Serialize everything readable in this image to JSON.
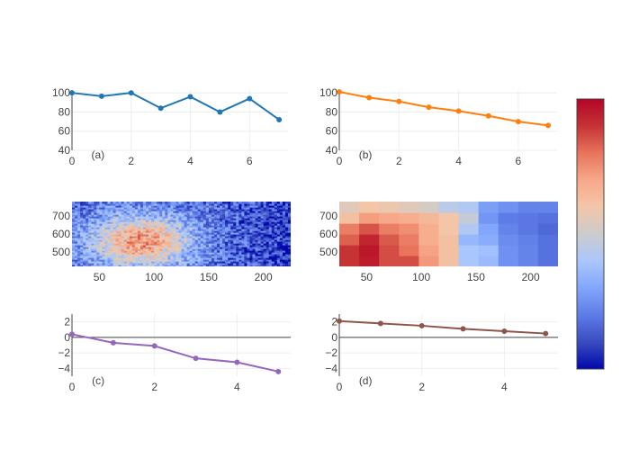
{
  "chart_data": [
    {
      "id": "a",
      "type": "line",
      "annotation": "(a)",
      "x": [
        0,
        1,
        2,
        3,
        4,
        5,
        6,
        7
      ],
      "series": [
        {
          "values": [
            100,
            96.5,
            100,
            84,
            96,
            80,
            94,
            72
          ],
          "color": "#1f77b4"
        }
      ],
      "xlim": [
        0,
        7.3
      ],
      "ylim": [
        40,
        103
      ],
      "xticks": [
        0,
        2,
        4,
        6
      ],
      "yticks": [
        40,
        60,
        80,
        100
      ],
      "grid": true
    },
    {
      "id": "b",
      "type": "line",
      "annotation": "(b)",
      "x": [
        0,
        1,
        2,
        3,
        4,
        5,
        6,
        7
      ],
      "series": [
        {
          "values": [
            101,
            95,
            91,
            85,
            81,
            76,
            70,
            66
          ],
          "color": "#ff7f0e"
        }
      ],
      "xlim": [
        0,
        7.3
      ],
      "ylim": [
        40,
        103
      ],
      "xticks": [
        0,
        2,
        4,
        6
      ],
      "yticks": [
        40,
        60,
        80,
        100
      ],
      "grid": true
    },
    {
      "id": "c",
      "type": "heatmap",
      "description": "noisy high-resolution heatmap, warm band centered near x≈90 and y≈550",
      "xlim": [
        25,
        225
      ],
      "ylim": [
        420,
        780
      ],
      "xticks": [
        50,
        100,
        150,
        200
      ],
      "yticks": [
        500,
        600,
        700
      ],
      "resolution": [
        80,
        36
      ]
    },
    {
      "id": "d",
      "type": "heatmap",
      "xlim": [
        25,
        225
      ],
      "ylim": [
        420,
        780
      ],
      "xticks": [
        50,
        100,
        150,
        200
      ],
      "yticks": [
        500,
        600,
        700
      ],
      "rows_bottom_to_top": [
        [
          0.9,
          0.95,
          0.86,
          0.86,
          0.73,
          0.62,
          0.4,
          0.36,
          0.25,
          0.22,
          0.18
        ],
        [
          0.9,
          0.96,
          0.86,
          0.8,
          0.71,
          0.62,
          0.4,
          0.38,
          0.25,
          0.22,
          0.18
        ],
        [
          0.83,
          0.93,
          0.84,
          0.78,
          0.68,
          0.62,
          0.35,
          0.32,
          0.24,
          0.21,
          0.18
        ],
        [
          0.78,
          0.85,
          0.78,
          0.75,
          0.68,
          0.6,
          0.42,
          0.3,
          0.22,
          0.19,
          0.16
        ],
        [
          0.62,
          0.72,
          0.7,
          0.68,
          0.65,
          0.6,
          0.48,
          0.26,
          0.2,
          0.19,
          0.18
        ],
        [
          0.55,
          0.6,
          0.58,
          0.55,
          0.52,
          0.45,
          0.42,
          0.28,
          0.25,
          0.22,
          0.22
        ]
      ]
    },
    {
      "id": "e",
      "type": "line",
      "annotation": "(c)",
      "x": [
        0,
        1,
        2,
        3,
        4,
        5
      ],
      "series": [
        {
          "values": [
            0.4,
            -0.7,
            -1.1,
            -2.7,
            -3.2,
            -4.4
          ],
          "color": "#9467bd"
        }
      ],
      "xlim": [
        0,
        5.3
      ],
      "ylim": [
        -5,
        3
      ],
      "xticks": [
        0,
        2,
        4
      ],
      "yticks": [
        -4,
        -2,
        0,
        2
      ],
      "grid": true
    },
    {
      "id": "f",
      "type": "line",
      "annotation": "(d)",
      "x": [
        0,
        1,
        2,
        3,
        4,
        5
      ],
      "series": [
        {
          "values": [
            2.1,
            1.8,
            1.5,
            1.1,
            0.8,
            0.5
          ],
          "color": "#8c564b"
        }
      ],
      "xlim": [
        0,
        5.3
      ],
      "ylim": [
        -5,
        3
      ],
      "xticks": [
        0,
        2,
        4
      ],
      "yticks": [
        -4,
        -2,
        0,
        2
      ],
      "grid": true
    }
  ],
  "colorbar": {
    "colors": [
      "#0008aa",
      "#3a4cc0",
      "#5d7ce6",
      "#82a6fb",
      "#aac7fd",
      "#cccccc",
      "#f3c6a8",
      "#f7a889",
      "#e7745b",
      "#c53334",
      "#b40426"
    ]
  }
}
